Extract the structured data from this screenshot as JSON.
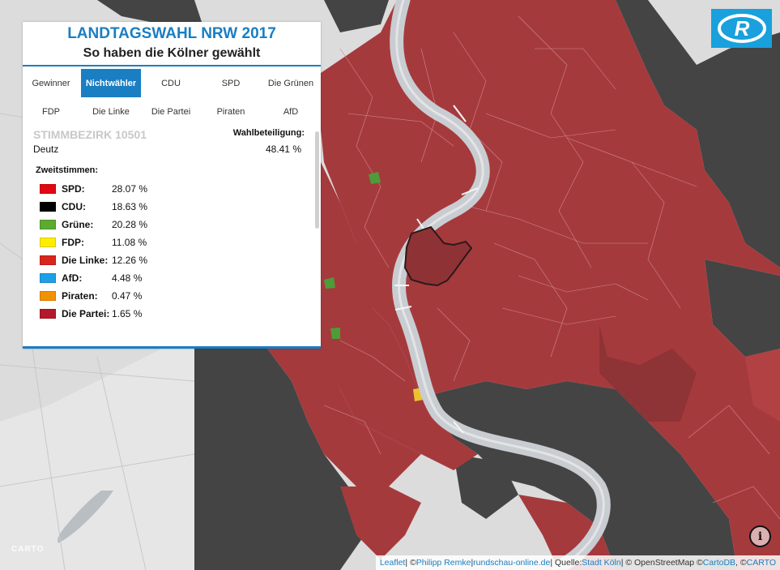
{
  "panel": {
    "title": "LANDTAGSWAHL NRW 2017",
    "subtitle": "So haben die Kölner gewählt",
    "tabs": [
      {
        "label": "Gewinner",
        "active": false
      },
      {
        "label": "Nichtwähler",
        "active": true
      },
      {
        "label": "CDU",
        "active": false
      },
      {
        "label": "SPD",
        "active": false
      },
      {
        "label": "Die Grünen",
        "active": false
      },
      {
        "label": "FDP",
        "active": false
      },
      {
        "label": "Die Linke",
        "active": false
      },
      {
        "label": "Die Partei",
        "active": false
      },
      {
        "label": "Piraten",
        "active": false
      },
      {
        "label": "AfD",
        "active": false
      }
    ],
    "district_label": "STIMMBEZIRK 10501",
    "district_name": "Deutz",
    "turnout_label": "Wahlbeteiligung:",
    "turnout_value": "48.41 %",
    "zweitstimmen_label": "Zweitstimmen:",
    "results": [
      {
        "party": "SPD:",
        "value": "28.07 %",
        "color": "#e30613"
      },
      {
        "party": "CDU:",
        "value": "18.63 %",
        "color": "#000000"
      },
      {
        "party": "Grüne:",
        "value": "20.28 %",
        "color": "#5aab2f"
      },
      {
        "party": "FDP:",
        "value": "11.08 %",
        "color": "#ffed00"
      },
      {
        "party": "Die Linke:",
        "value": "12.26 %",
        "color": "#d7261c"
      },
      {
        "party": "AfD:",
        "value": "4.48 %",
        "color": "#1ea0e6"
      },
      {
        "party": "Piraten:",
        "value": "0.47 %",
        "color": "#f39200"
      },
      {
        "party": "Die Partei:",
        "value": "1.65 %",
        "color": "#b3192b"
      }
    ]
  },
  "logo_letter": "R",
  "info_icon": "i",
  "carto_mark": "CARTO",
  "attribution": {
    "leaflet": "Leaflet",
    "sep1": " | © ",
    "author": "Philipp Remke",
    "sep2": " | ",
    "site": "rundschau-online.de",
    "sep3": " | Quelle: ",
    "source": "Stadt Köln",
    "sep4": " | © OpenStreetMap © ",
    "cartodb": "CartoDB",
    "sep5": ", © ",
    "carto": "CARTO"
  },
  "colors": {
    "accent": "#1a7ec2",
    "nonvoter_high": "#444444",
    "nonvoter_district": "#a53a3d",
    "river": "#c9cdd1"
  }
}
